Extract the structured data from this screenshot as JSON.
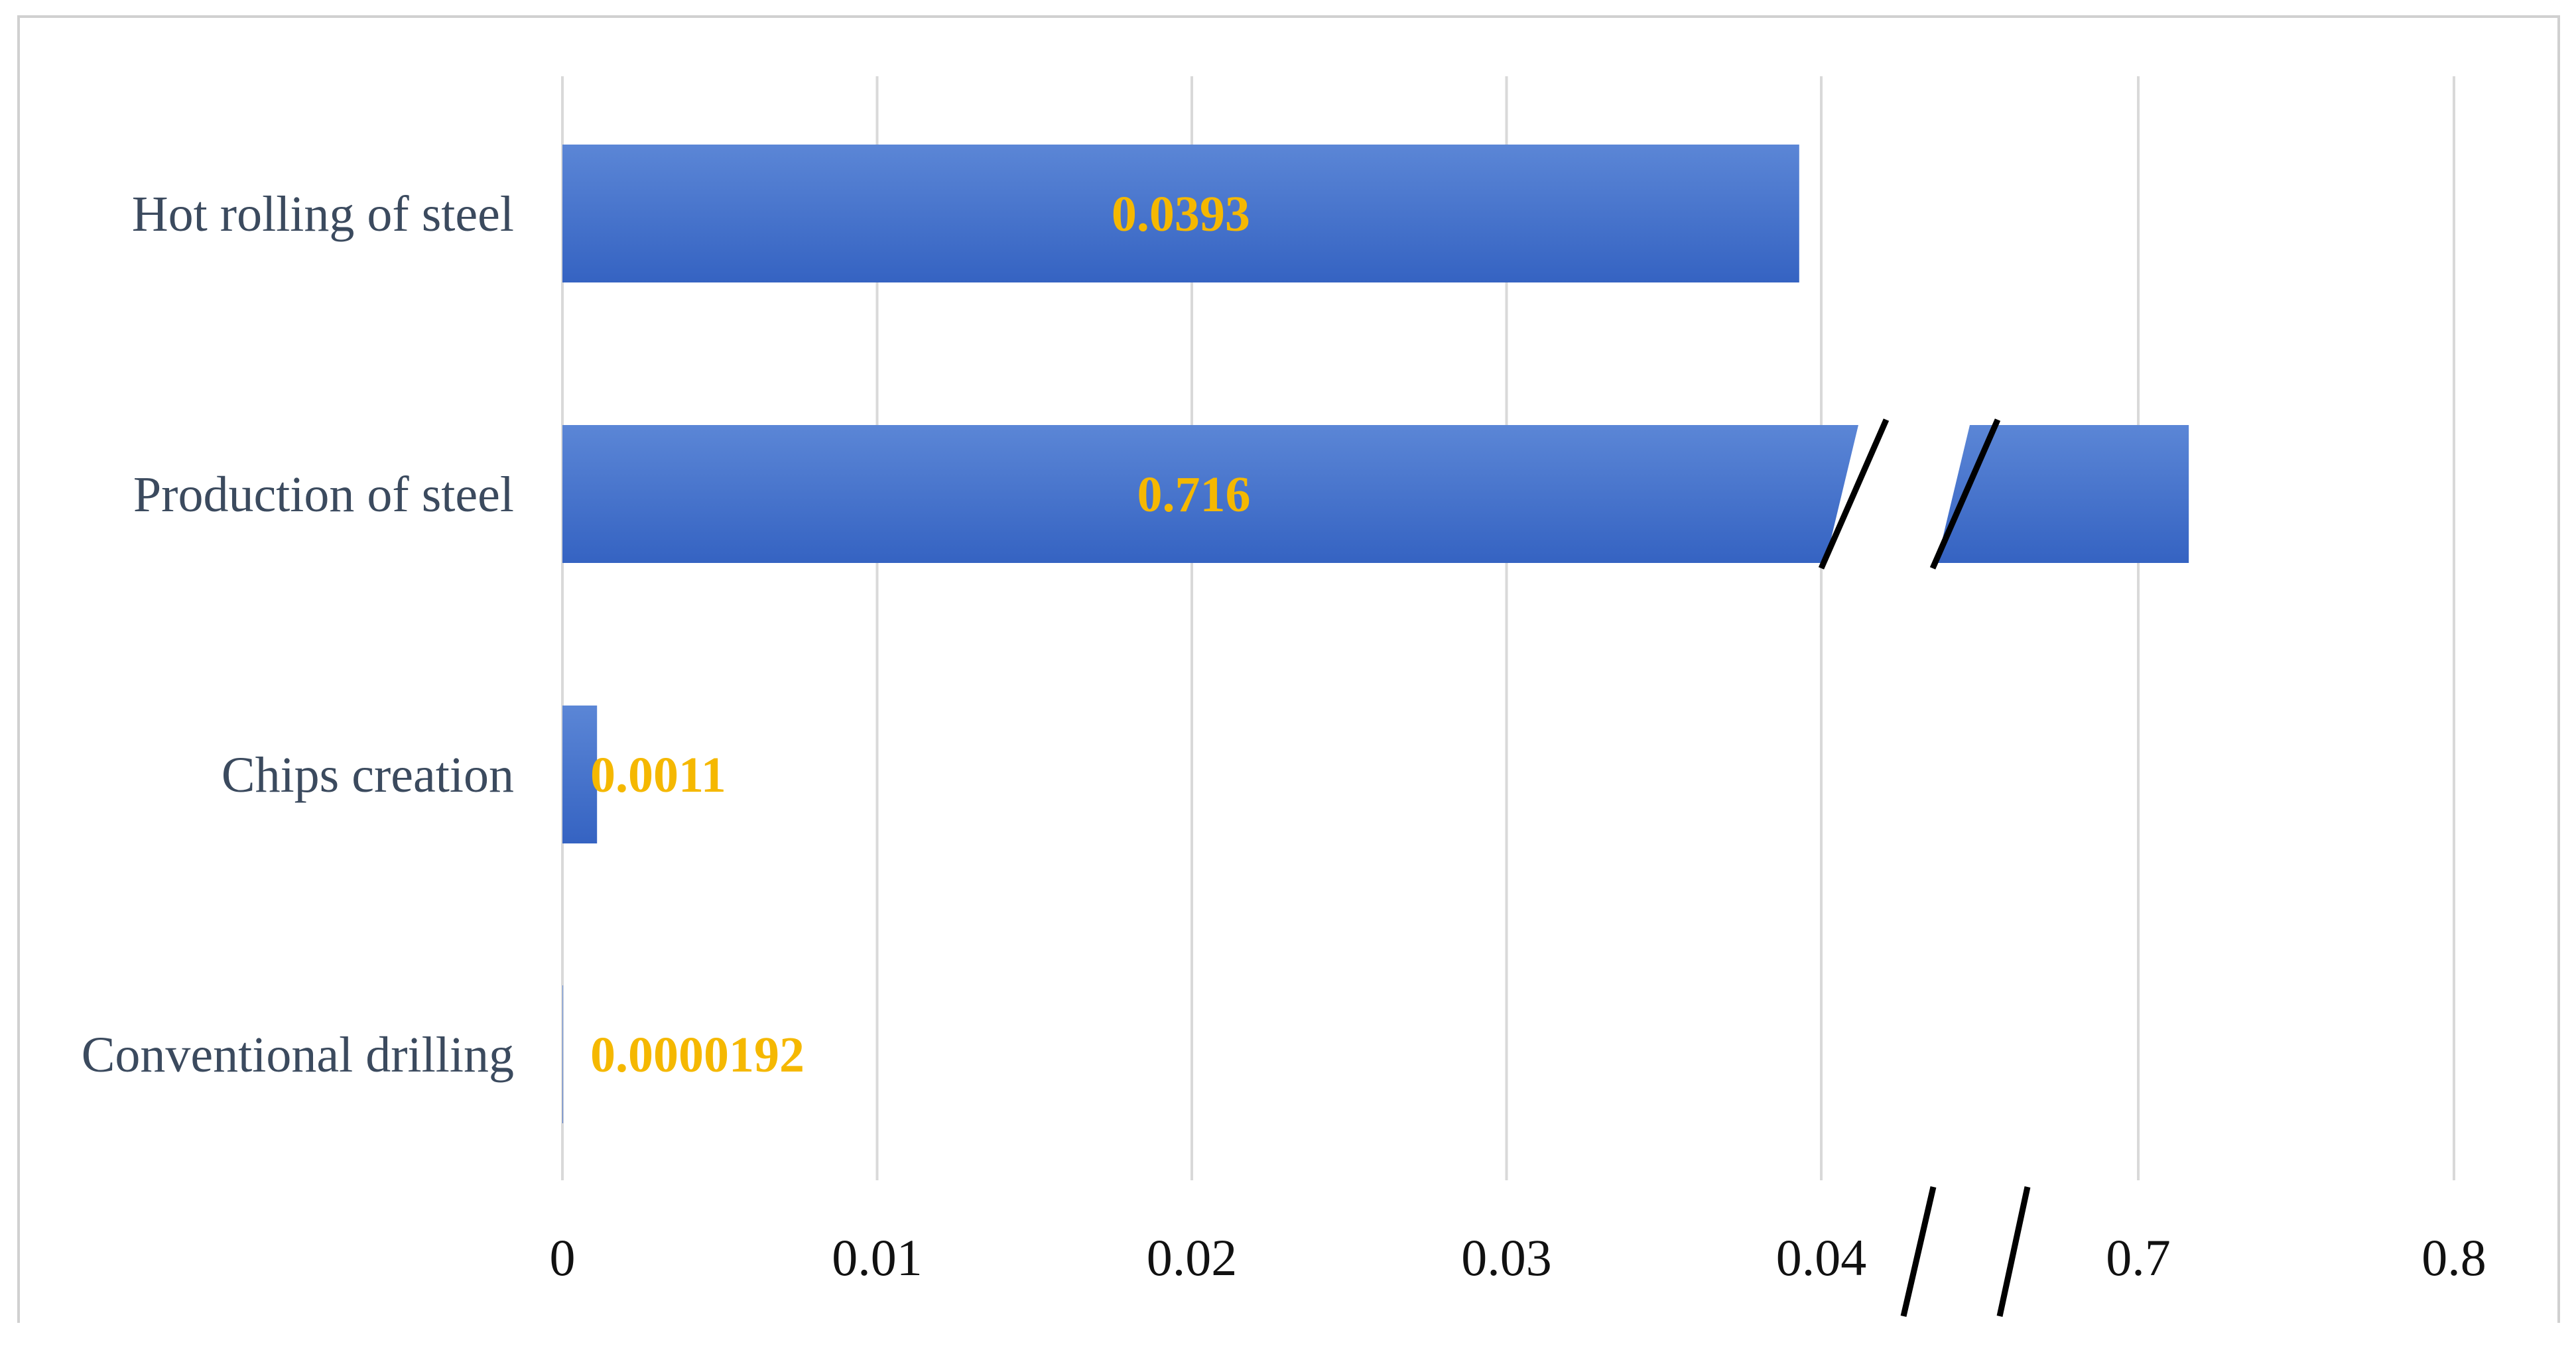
{
  "colors": {
    "bar": "#3563c2",
    "bar_highlight": "#5b86d6",
    "data_label": "#f5b800",
    "gridline": "#d9d9d9",
    "frame": "#d0d0d0",
    "category_text": "#3b4a5e",
    "tick_text": "#111111"
  },
  "chart_data": {
    "type": "bar",
    "orientation": "horizontal",
    "categories": [
      "Hot rolling of steel",
      "Production of steel",
      "Chips creation",
      "Conventional drilling"
    ],
    "values": [
      0.0393,
      0.716,
      0.0011,
      1.92e-05
    ],
    "data_labels": [
      "0.0393",
      "0.716",
      "0.0011",
      "0.0000192"
    ],
    "x_axis": {
      "broken": true,
      "break_between": [
        0.04,
        0.7
      ],
      "ticks": [
        "0",
        "0.01",
        "0.02",
        "0.03",
        "0.04",
        "0.7",
        "0.8"
      ],
      "lower_range": [
        0,
        0.04
      ],
      "upper_range": [
        0.7,
        0.8
      ]
    },
    "grid": true,
    "legend": "none",
    "title": "",
    "xlabel": "",
    "ylabel": ""
  }
}
